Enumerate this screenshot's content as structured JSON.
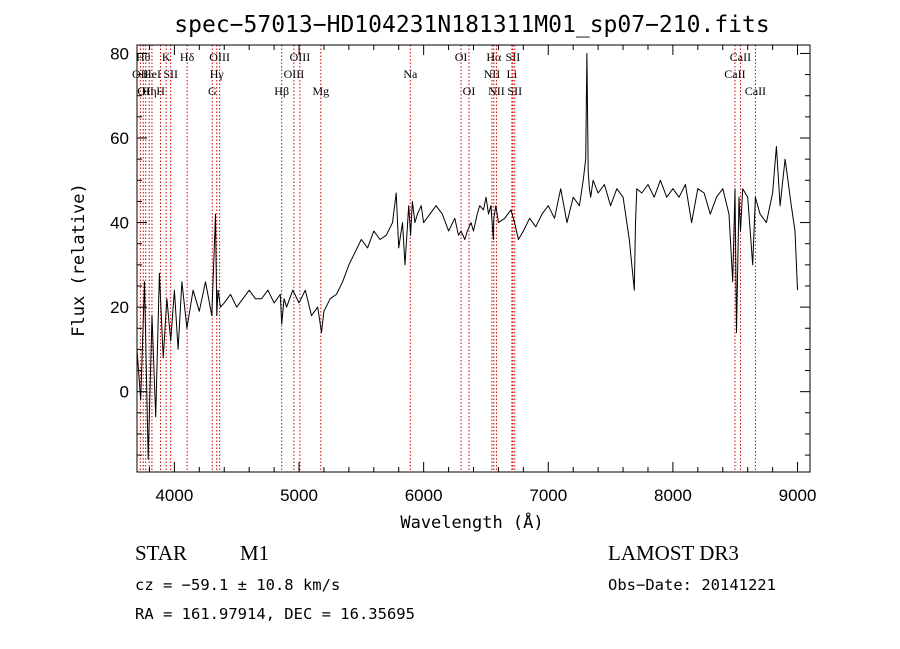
{
  "chart_data": {
    "type": "line",
    "title": "spec−57013−HD104231N181311M01_sp07−210.fits",
    "xlabel": "Wavelength (Å)",
    "ylabel": "Flux (relative)",
    "xlim": [
      3700,
      9100
    ],
    "ylim": [
      -19,
      82
    ],
    "xticks": [
      4000,
      5000,
      6000,
      7000,
      8000,
      9000
    ],
    "yticks": [
      0,
      20,
      40,
      60,
      80
    ],
    "grid": false,
    "series": [
      {
        "name": "spectrum",
        "x": [
          3700,
          3730,
          3760,
          3790,
          3820,
          3850,
          3880,
          3910,
          3940,
          3970,
          4000,
          4030,
          4060,
          4100,
          4150,
          4200,
          4250,
          4300,
          4330,
          4340,
          4350,
          4370,
          4400,
          4450,
          4500,
          4550,
          4600,
          4650,
          4700,
          4750,
          4800,
          4850,
          4861,
          4880,
          4900,
          4950,
          5000,
          5050,
          5100,
          5150,
          5180,
          5200,
          5250,
          5300,
          5350,
          5400,
          5450,
          5500,
          5550,
          5600,
          5650,
          5700,
          5750,
          5780,
          5800,
          5830,
          5850,
          5880,
          5895,
          5910,
          5930,
          5950,
          5980,
          6000,
          6050,
          6100,
          6150,
          6200,
          6250,
          6280,
          6300,
          6330,
          6350,
          6380,
          6400,
          6430,
          6450,
          6480,
          6500,
          6520,
          6540,
          6560,
          6563,
          6580,
          6600,
          6650,
          6700,
          6730,
          6760,
          6800,
          6850,
          6900,
          6950,
          7000,
          7050,
          7100,
          7150,
          7200,
          7250,
          7280,
          7300,
          7310,
          7320,
          7330,
          7340,
          7360,
          7400,
          7450,
          7500,
          7550,
          7600,
          7650,
          7690,
          7700,
          7710,
          7750,
          7800,
          7850,
          7900,
          7950,
          8000,
          8050,
          8100,
          8150,
          8200,
          8250,
          8300,
          8350,
          8400,
          8450,
          8480,
          8498,
          8510,
          8530,
          8542,
          8560,
          8600,
          8640,
          8662,
          8680,
          8700,
          8750,
          8800,
          8830,
          8860,
          8900,
          8950,
          8980,
          9000
        ],
        "y": [
          10,
          -2,
          26,
          -16,
          18,
          -6,
          28,
          8,
          22,
          12,
          24,
          10,
          26,
          15,
          24,
          19,
          26,
          18,
          42,
          18,
          24,
          20,
          21,
          23,
          20,
          22,
          24,
          22,
          22,
          24,
          21,
          23,
          16,
          22,
          20,
          24,
          21,
          24,
          18,
          20,
          14,
          19,
          22,
          23,
          26,
          30,
          33,
          36,
          34,
          38,
          36,
          37,
          40,
          47,
          34,
          40,
          30,
          44,
          37,
          45,
          40,
          42,
          44,
          40,
          42,
          44,
          42,
          38,
          41,
          37,
          38,
          36,
          38,
          40,
          38,
          42,
          44,
          43,
          46,
          42,
          44,
          36,
          41,
          44,
          40,
          41,
          43,
          40,
          36,
          38,
          41,
          39,
          42,
          44,
          41,
          48,
          40,
          46,
          44,
          50,
          55,
          80,
          52,
          48,
          46,
          50,
          47,
          49,
          44,
          48,
          46,
          36,
          24,
          40,
          48,
          47,
          49,
          46,
          50,
          46,
          48,
          46,
          49,
          40,
          48,
          47,
          42,
          46,
          48,
          42,
          26,
          48,
          14,
          46,
          38,
          48,
          46,
          30,
          46,
          44,
          42,
          40,
          47,
          58,
          44,
          55,
          44,
          38,
          24
        ]
      }
    ],
    "line_markers": [
      {
        "wavelength": 3727,
        "label": "OII",
        "row": 2
      },
      {
        "wavelength": 3750,
        "label": "Hθ",
        "row": 1
      },
      {
        "wavelength": 3770,
        "label": "OII",
        "row": 3
      },
      {
        "wavelength": 3798,
        "label": "Hη",
        "row": 3
      },
      {
        "wavelength": 3820,
        "label": "HeI",
        "row": 2
      },
      {
        "wavelength": 3889,
        "label": "H",
        "row": 3
      },
      {
        "wavelength": 3934,
        "label": "K",
        "row": 1
      },
      {
        "wavelength": 3970,
        "label": "SII",
        "row": 2
      },
      {
        "wavelength": 4102,
        "label": "Hδ",
        "row": 1
      },
      {
        "wavelength": 4304,
        "label": "G",
        "row": 3
      },
      {
        "wavelength": 4340,
        "label": "Hγ",
        "row": 2
      },
      {
        "wavelength": 4363,
        "label": "OIII",
        "row": 1
      },
      {
        "wavelength": 4861,
        "label": "Hβ",
        "row": 3
      },
      {
        "wavelength": 4959,
        "label": "OIII",
        "row": 2
      },
      {
        "wavelength": 5007,
        "label": "OIII",
        "row": 1
      },
      {
        "wavelength": 5175,
        "label": "Mg",
        "row": 3
      },
      {
        "wavelength": 5893,
        "label": "Na",
        "row": 2
      },
      {
        "wavelength": 6300,
        "label": "OI",
        "row": 1
      },
      {
        "wavelength": 6364,
        "label": "OI",
        "row": 3
      },
      {
        "wavelength": 6548,
        "label": "NII",
        "row": 2
      },
      {
        "wavelength": 6563,
        "label": "Hα",
        "row": 1
      },
      {
        "wavelength": 6584,
        "label": "NII",
        "row": 3
      },
      {
        "wavelength": 6708,
        "label": "Li",
        "row": 2
      },
      {
        "wavelength": 6716,
        "label": "SII",
        "row": 1
      },
      {
        "wavelength": 6731,
        "label": "SII",
        "row": 3
      },
      {
        "wavelength": 8498,
        "label": "CaII",
        "row": 2
      },
      {
        "wavelength": 8542,
        "label": "CaII",
        "row": 1
      },
      {
        "wavelength": 8662,
        "label": "CaII",
        "row": 3
      }
    ],
    "colors": {
      "spectrum": "#000000",
      "markers": "#cc0000",
      "axes": "#000000"
    }
  },
  "info": {
    "class": "STAR",
    "subclass": "M1",
    "survey": "LAMOST DR3",
    "cz": "cz = −59.1 ± 10.8 km/s",
    "obs_date": "Obs−Date: 20141221",
    "coords": "RA = 161.97914, DEC =  16.35695"
  }
}
